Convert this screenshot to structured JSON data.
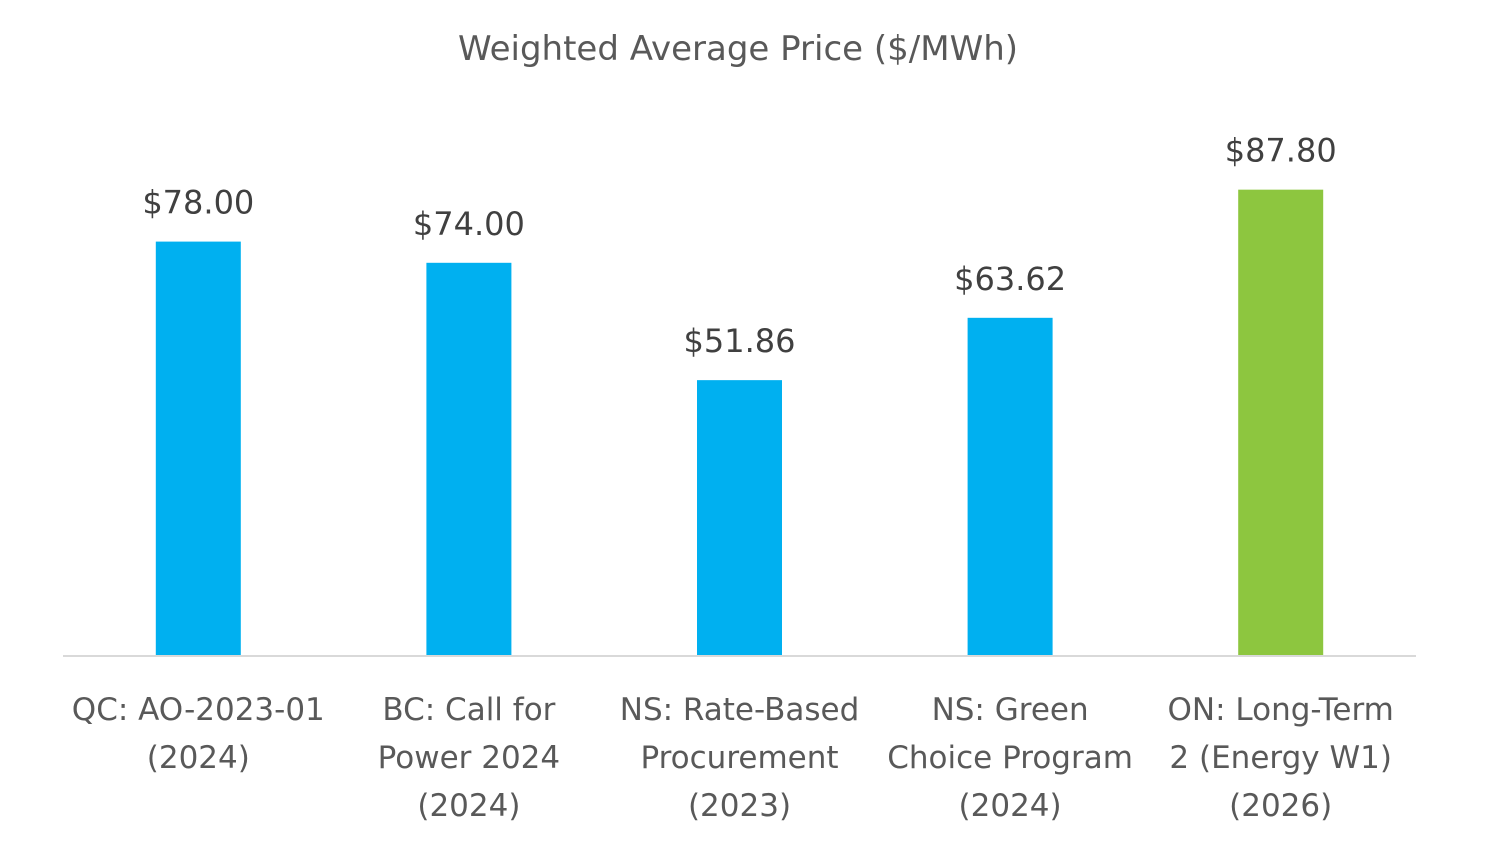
{
  "chart_data": {
    "type": "bar",
    "title": "Weighted Average Price ($/MWh)",
    "xlabel": "",
    "ylabel": "",
    "ylim": [
      0,
      100
    ],
    "grid": false,
    "legend": "none",
    "categories": [
      [
        "QC: AO-2023-01",
        "(2024)"
      ],
      [
        "BC: Call for",
        "Power 2024",
        "(2024)"
      ],
      [
        "NS: Rate-Based",
        "Procurement",
        "(2023)"
      ],
      [
        "NS: Green",
        "Choice Program",
        "(2024)"
      ],
      [
        "ON: Long-Term",
        "2 (Energy W1)",
        "(2026)"
      ]
    ],
    "values": [
      78.0,
      74.0,
      51.86,
      63.62,
      87.8
    ],
    "data_labels": [
      "$78.00",
      "$74.00",
      "$51.86",
      "$63.62",
      "$87.80"
    ],
    "colors": [
      "#00B0F0",
      "#00B0F0",
      "#00B0F0",
      "#00B0F0",
      "#8DC63F"
    ]
  },
  "axis_color": "#D9D9D9"
}
